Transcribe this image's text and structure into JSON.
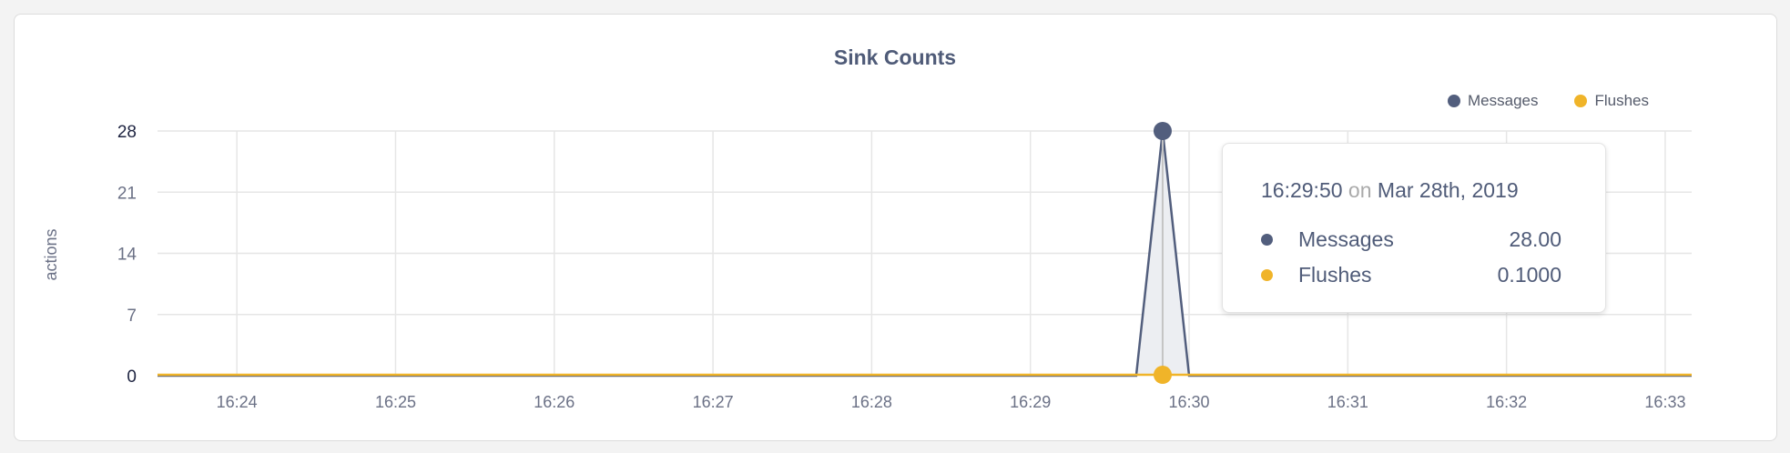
{
  "chart_data": {
    "type": "line",
    "title": "Sink Counts",
    "ylabel": "actions",
    "xlabel": "",
    "ylim": [
      0,
      28
    ],
    "yticks": [
      "0",
      "7",
      "14",
      "21",
      "28"
    ],
    "xticks": [
      "16:24",
      "16:25",
      "16:26",
      "16:27",
      "16:28",
      "16:29",
      "16:30",
      "16:31",
      "16:32",
      "16:33"
    ],
    "xrange": [
      "16:23:30",
      "16:33:10"
    ],
    "sample_interval_seconds": 10,
    "grid": true,
    "legend_position": "top-right",
    "series": [
      {
        "name": "Messages",
        "color": "#525e7d",
        "fill": "#eceef2",
        "points": [
          [
            "16:29:40",
            0
          ],
          [
            "16:29:50",
            28
          ],
          [
            "16:30:00",
            0
          ]
        ],
        "default": 0
      },
      {
        "name": "Flushes",
        "color": "#f0b429",
        "default": 0.1
      }
    ]
  },
  "tooltip": {
    "time": "16:29:50",
    "on": "on",
    "date": "Mar 28th, 2019",
    "rows": [
      {
        "label": "Messages",
        "value": "28.00",
        "color": "#525e7d"
      },
      {
        "label": "Flushes",
        "value": "0.1000",
        "color": "#f0b429"
      }
    ]
  }
}
